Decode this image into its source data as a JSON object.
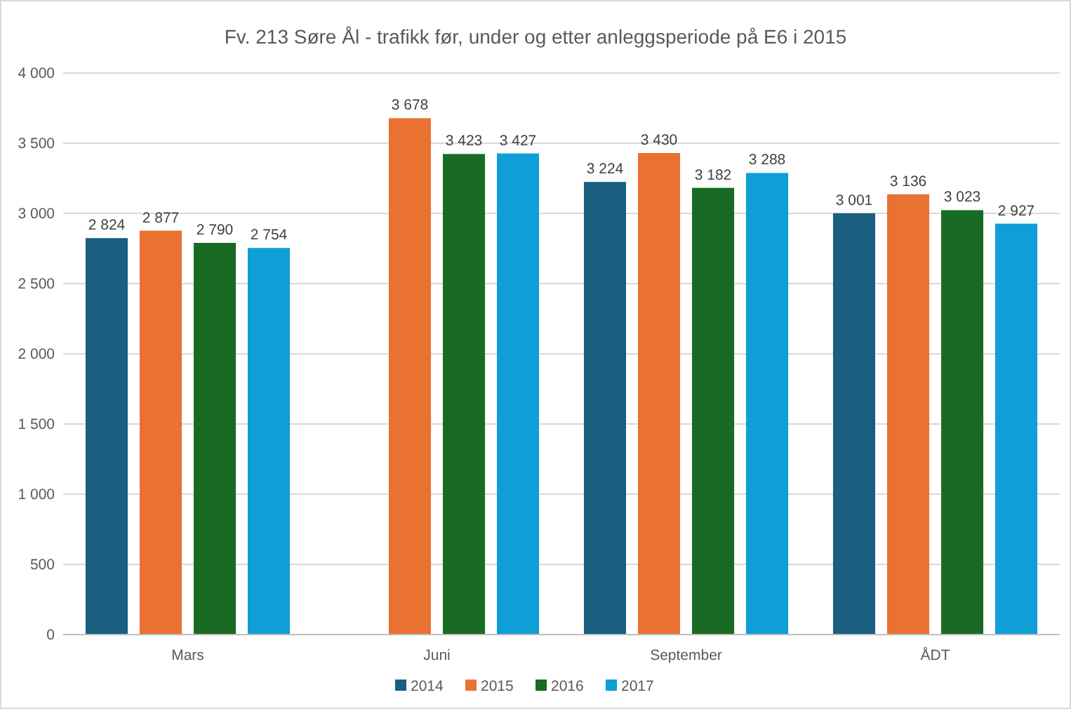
{
  "chart_data": {
    "type": "bar",
    "title": "Fv. 213 Søre Ål - trafikk før, under og etter anleggsperiode på E6 i 2015",
    "categories": [
      "Mars",
      "Juni",
      "September",
      "ÅDT"
    ],
    "series": [
      {
        "name": "2014",
        "color": "#1a5e80",
        "values": [
          2824,
          null,
          3224,
          3001
        ],
        "value_labels": [
          "2 824",
          null,
          "3 224",
          "3 001"
        ]
      },
      {
        "name": "2015",
        "color": "#e97132",
        "values": [
          2877,
          3678,
          3430,
          3136
        ],
        "value_labels": [
          "2 877",
          "3 678",
          "3 430",
          "3 136"
        ]
      },
      {
        "name": "2016",
        "color": "#196b24",
        "values": [
          2790,
          3423,
          3182,
          3023
        ],
        "value_labels": [
          "2 790",
          "3 423",
          "3 182",
          "3 023"
        ]
      },
      {
        "name": "2017",
        "color": "#0f9ed5",
        "values": [
          2754,
          3427,
          3288,
          2927
        ],
        "value_labels": [
          "2 754",
          "3 427",
          "3 288",
          "2 927"
        ]
      }
    ],
    "ylim": [
      0,
      4000
    ],
    "yticks": [
      0,
      {
        "value": 500,
        "label": "500"
      },
      {
        "value": 1000,
        "label": "1 000"
      },
      {
        "value": 1500,
        "label": "1 500"
      },
      {
        "value": 2000,
        "label": "2 000"
      },
      {
        "value": 2500,
        "label": "2 500"
      },
      {
        "value": 3000,
        "label": "3 000"
      },
      {
        "value": 3500,
        "label": "3 500"
      },
      {
        "value": 4000,
        "label": "4 000"
      }
    ],
    "grid": "y",
    "legend": "bottom"
  }
}
